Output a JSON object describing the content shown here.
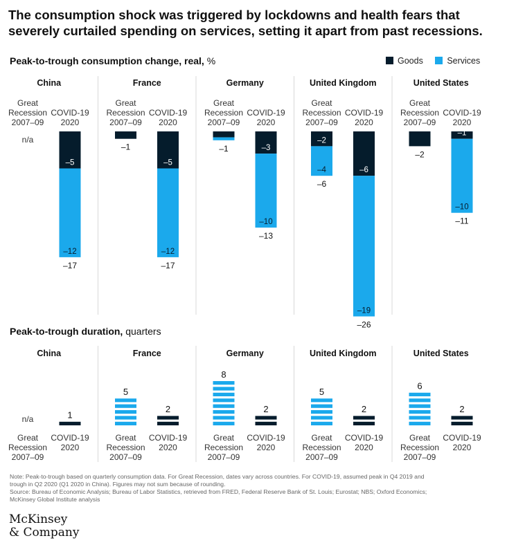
{
  "title": "The consumption shock was triggered by lockdowns and health fears that severely curtailed spending on services, setting it apart from past recessions.",
  "section1": {
    "bold": "Peak-to-trough consumption change, real,",
    "rest": " %"
  },
  "section2": {
    "bold": "Peak-to-trough duration,",
    "rest": " quarters"
  },
  "legend": [
    {
      "label": "Goods",
      "color": "#051c2c"
    },
    {
      "label": "Services",
      "color": "#1ba9ec"
    }
  ],
  "colors": {
    "goods": "#051c2c",
    "services": "#1ba9ec"
  },
  "note_lines": [
    "Note: Peak-to-trough based on quarterly consumption data. For Great Recession, dates vary across countries. For COVID-19, assumed peak in Q4 2019 and",
    "trough in Q2 2020 (Q1 2020 in China). Figures may not sum because of rounding.",
    "Source: Bureau of Economic Analysis; Bureau of Labor Statistics, retrieved from FRED, Federal Reserve Bank of St. Louis; Eurostat; NBS; Oxford Economics;",
    "McKinsey Global Institute analysis"
  ],
  "logo": {
    "line1": "McKinsey",
    "line2": "& Company"
  },
  "chart_data": [
    {
      "type": "bar",
      "title": "Peak-to-trough consumption change, real, %",
      "stacked": true,
      "series_names": [
        "Goods",
        "Services"
      ],
      "period_labels": [
        [
          "Great",
          "Recession",
          "2007–09"
        ],
        [
          "COVID-19",
          "2020"
        ]
      ],
      "na_label": "n/a",
      "countries": [
        {
          "name": "China",
          "periods": [
            {
              "na": true
            },
            {
              "goods": -5,
              "services": -12,
              "total": -17,
              "goods_label": "–5",
              "services_label": "–12",
              "total_label": "–17"
            }
          ]
        },
        {
          "name": "France",
          "periods": [
            {
              "goods": -1,
              "services": 0,
              "total": -1,
              "goods_label": "",
              "services_label": "",
              "total_label": "–1"
            },
            {
              "goods": -5,
              "services": -12,
              "total": -17,
              "goods_label": "–5",
              "services_label": "–12",
              "total_label": "–17"
            }
          ]
        },
        {
          "name": "Germany",
          "periods": [
            {
              "goods": -0.8,
              "services": -0.4,
              "total": -1,
              "goods_label": "",
              "services_label": "",
              "total_label": "–1"
            },
            {
              "goods": -3,
              "services": -10,
              "total": -13,
              "goods_label": "–3",
              "services_label": "–10",
              "total_label": "–13"
            }
          ]
        },
        {
          "name": "United Kingdom",
          "periods": [
            {
              "goods": -2,
              "services": -4,
              "total": -6,
              "goods_label": "–2",
              "services_label": "–4",
              "total_label": "–6"
            },
            {
              "goods": -6,
              "services": -19,
              "total": -26,
              "goods_label": "–6",
              "services_label": "–19",
              "total_label": "–26"
            }
          ]
        },
        {
          "name": "United States",
          "periods": [
            {
              "goods": -2,
              "services": 0,
              "total": -2,
              "goods_label": "",
              "services_label": "",
              "total_label": "–2"
            },
            {
              "goods": -1,
              "services": -10,
              "total": -11,
              "goods_label": "–1",
              "services_label": "–10",
              "total_label": "–11"
            }
          ]
        }
      ]
    },
    {
      "type": "bar",
      "title": "Peak-to-trough duration, quarters",
      "period_labels": [
        [
          "Great",
          "Recession",
          "2007–09"
        ],
        [
          "COVID-19",
          "2020"
        ]
      ],
      "na_label": "n/a",
      "countries": [
        {
          "name": "China",
          "values": [
            null,
            1
          ],
          "labels": [
            "n/a",
            "1"
          ]
        },
        {
          "name": "France",
          "values": [
            5,
            2
          ],
          "labels": [
            "5",
            "2"
          ]
        },
        {
          "name": "Germany",
          "values": [
            8,
            2
          ],
          "labels": [
            "8",
            "2"
          ]
        },
        {
          "name": "United Kingdom",
          "values": [
            5,
            2
          ],
          "labels": [
            "5",
            "2"
          ]
        },
        {
          "name": "United States",
          "values": [
            6,
            2
          ],
          "labels": [
            "6",
            "2"
          ]
        }
      ]
    }
  ]
}
